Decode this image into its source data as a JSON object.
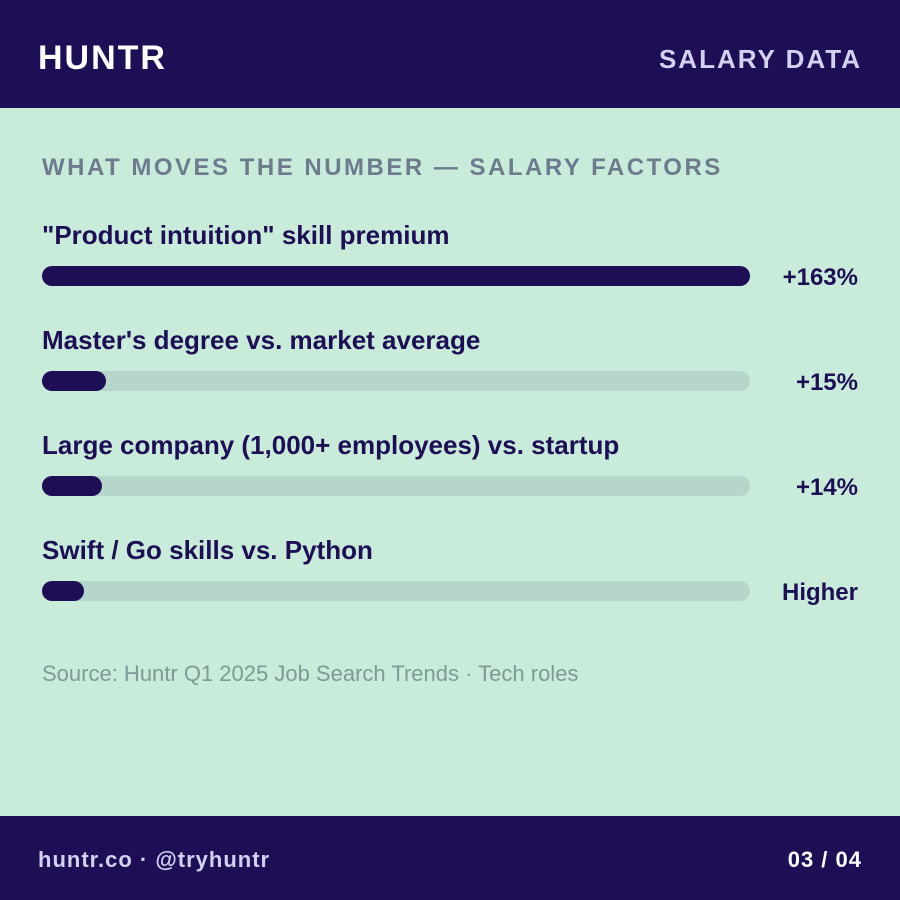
{
  "header": {
    "brand": "HUNTR",
    "tag": "SALARY DATA"
  },
  "section_title": "WHAT MOVES THE NUMBER — SALARY FACTORS",
  "chart_data": {
    "type": "bar",
    "orientation": "horizontal",
    "title": "WHAT MOVES THE NUMBER — SALARY FACTORS",
    "categories": [
      "\"Product intuition\" skill premium",
      "Master's degree vs. market average",
      "Large company (1,000+ employees) vs. startup",
      "Swift / Go skills vs. Python"
    ],
    "value_labels": [
      "+163%",
      "+15%",
      "+14%",
      "Higher"
    ],
    "values": [
      163,
      15,
      14,
      null
    ],
    "fill_fractions": [
      1.0,
      0.09,
      0.085,
      0.06
    ],
    "bar_color": "#1e0e56",
    "track_color": "#b6d6cb"
  },
  "source": "Source: Huntr Q1 2025 Job Search Trends · Tech roles",
  "footer": {
    "handle": "huntr.co · @tryhuntr",
    "page": "03 / 04"
  },
  "colors": {
    "brand_dark": "#1e0e56",
    "background": "#c8ecd9",
    "muted_title": "#6e7b8f",
    "source_text": "#7d9a94"
  }
}
